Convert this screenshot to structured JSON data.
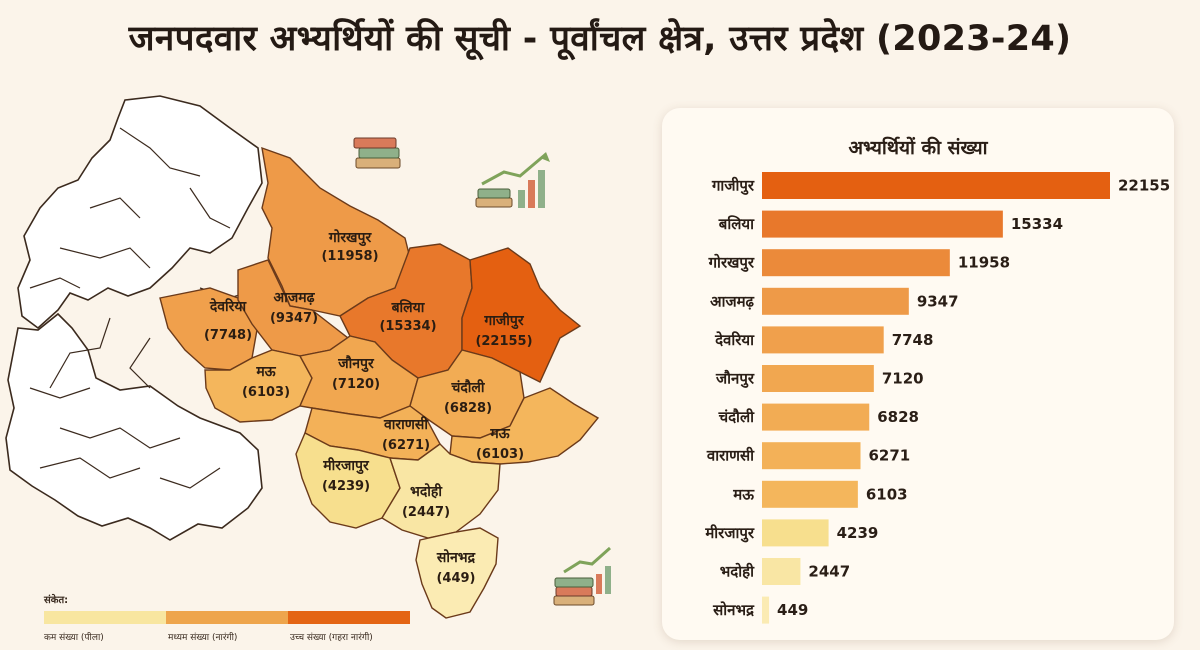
{
  "title": "जनपदवार अभ्यर्थियों की सूची - पूर्वांचल क्षेत्र, उत्तर प्रदेश (2023-24)",
  "colors": {
    "low": "#f8e6a0",
    "medium": "#eea54c",
    "high": "#e46514",
    "grey_region": "#ffffff",
    "border": "#3b2a1e"
  },
  "map": {
    "districts": [
      {
        "name": "गोरखपुर",
        "value": "(11958)"
      },
      {
        "name": "देवरिया",
        "value": "(7748)"
      },
      {
        "name": "आजमढ़",
        "value": "(9347)"
      },
      {
        "name": "बलिया",
        "value": "(15334)"
      },
      {
        "name": "गाजीपुर",
        "value": "(22155)"
      },
      {
        "name": "मऊ",
        "value": "(6103)"
      },
      {
        "name": "जौनपुर",
        "value": "(7120)"
      },
      {
        "name": "चंदौली",
        "value": "(6828)"
      },
      {
        "name": "वाराणसी",
        "value": "(6271)"
      },
      {
        "name": "मऊ",
        "value": "(6103)"
      },
      {
        "name": "मीरजापुर",
        "value": "(4239)"
      },
      {
        "name": "भदोही",
        "value": "(2447)"
      },
      {
        "name": "सोनभद्र",
        "value": "(449)"
      }
    ]
  },
  "legend": {
    "title": "संकेत:",
    "items": [
      {
        "label": "कम संख्या (पीला)",
        "color": "#f8e6a0"
      },
      {
        "label": "मध्यम संख्या (नारंगी)",
        "color": "#eea54c"
      },
      {
        "label": "उच्च संख्या (गहरा नारंगी)",
        "color": "#e46514"
      }
    ]
  },
  "decorations": {
    "icons": [
      "books-icon",
      "books-growth-chart-icon",
      "books-growth-chart-icon",
      "books-growth-chart-icon"
    ]
  },
  "chart_data": {
    "type": "bar",
    "orientation": "horizontal",
    "title": "अभ्यर्थियों की संख्या",
    "categories": [
      "गाजीपुर",
      "बलिया",
      "गोरखपुर",
      "आजमढ़",
      "देवरिया",
      "जौनपुर",
      "चंदौली",
      "वाराणसी",
      "मऊ",
      "मीरजापुर",
      "भदोही",
      "सोनभद्र"
    ],
    "values": [
      22155,
      15334,
      11958,
      9347,
      7748,
      7120,
      6828,
      6271,
      6103,
      4239,
      2447,
      449
    ],
    "value_labels": [
      "22155",
      "15334",
      "11958",
      "9347",
      "7748",
      "7120",
      "6828",
      "6271",
      "6103",
      "4239",
      "2447",
      "449"
    ],
    "bar_colors": [
      "#e46011",
      "#e8782b",
      "#eb8a3a",
      "#ee9a48",
      "#f0a04c",
      "#f1a750",
      "#f2ac54",
      "#f3b158",
      "#f4b65c",
      "#f7df8e",
      "#f9e6a4",
      "#fbebb3"
    ],
    "xlim": [
      0,
      22155
    ],
    "grid": false,
    "legend": false
  }
}
